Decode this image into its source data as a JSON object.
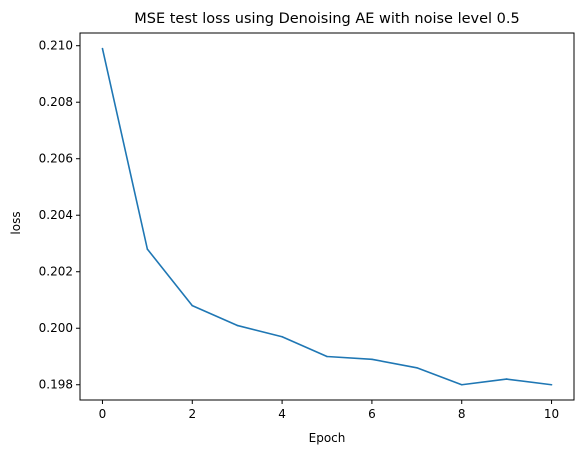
{
  "chart_data": {
    "type": "line",
    "title": "MSE test loss using Denoising AE with noise level 0.5",
    "xlabel": "Epoch",
    "ylabel": "loss",
    "xlim": [
      -0.5,
      10.5
    ],
    "ylim": [
      0.19746,
      0.21045
    ],
    "xticks": [
      0,
      2,
      4,
      6,
      8,
      10
    ],
    "xtick_labels": [
      "0",
      "2",
      "4",
      "6",
      "8",
      "10"
    ],
    "yticks": [
      0.198,
      0.2,
      0.202,
      0.204,
      0.206,
      0.208,
      0.21
    ],
    "ytick_labels": [
      "0.198",
      "0.200",
      "0.202",
      "0.204",
      "0.206",
      "0.208",
      "0.210"
    ],
    "grid": false,
    "series": [
      {
        "color": "#1f77b4",
        "x": [
          0,
          1,
          2,
          3,
          4,
          5,
          6,
          7,
          8,
          9,
          10
        ],
        "y": [
          0.2099,
          0.2028,
          0.2008,
          0.2001,
          0.1997,
          0.199,
          0.1989,
          0.1986,
          0.198,
          0.1982,
          0.198
        ]
      }
    ]
  }
}
